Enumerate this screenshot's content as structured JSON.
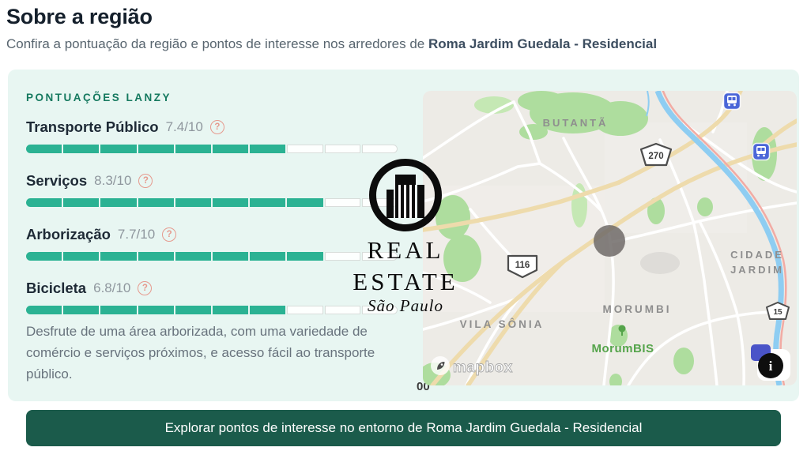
{
  "header": {
    "title": "Sobre a região",
    "subtitle_prefix": "Confira a pontuação da região e pontos de interesse nos arredores de ",
    "subtitle_property": "Roma Jardim Guedala - Residencial"
  },
  "panel": {
    "heading": "PONTUAÇÕES LANZY",
    "help_icon": "?",
    "scores": [
      {
        "label": "Transporte Público",
        "value": "7.4/10",
        "score": 7.4
      },
      {
        "label": "Serviços",
        "value": "8.3/10",
        "score": 8.3
      },
      {
        "label": "Arborização",
        "value": "7.7/10",
        "score": 7.7
      },
      {
        "label": "Bicicleta",
        "value": "6.8/10",
        "score": 6.8
      }
    ],
    "description": "Desfrute de uma área arborizada, com uma variedade de comércio e serviços próximos, e acesso fácil ao transporte público."
  },
  "map": {
    "neighborhoods": {
      "butanta": "BUTANTÃ",
      "vila_sonia": "VILA SÔNIA",
      "morumbi": "MORUMBI",
      "cidade": "CIDADE",
      "jardim": "JARDIM"
    },
    "poi": {
      "morumbis": "MorumBIS"
    },
    "shields": {
      "s270": "270",
      "s116": "116",
      "s15": "15"
    },
    "attribution": "mapbox",
    "info_icon": "i",
    "edge_text": "00"
  },
  "watermark": {
    "line1": "REAL",
    "line2": "ESTATE",
    "script": "São Paulo"
  },
  "cta": {
    "label": "Explorar pontos de interesse no entorno de Roma Jardim Guedala - Residencial"
  },
  "colors": {
    "accent_teal": "#2bb293",
    "heading_teal": "#15795f",
    "button_green": "#1b5b4b",
    "panel_mint": "#e8f6f2",
    "help_salmon": "#e69a8e",
    "poi_green": "#55a44b",
    "metro_blue": "#4b66d8"
  }
}
